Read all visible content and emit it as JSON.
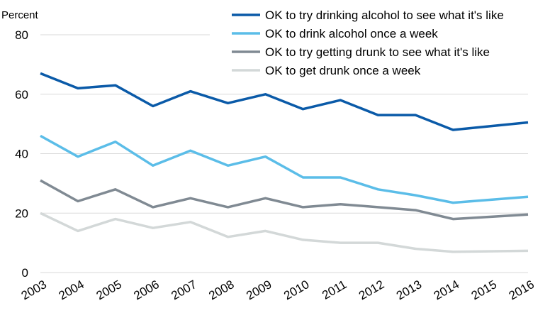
{
  "chart_data": {
    "type": "line",
    "ylabel": "Percent",
    "ylim": [
      0,
      80
    ],
    "yticks": [
      0,
      20,
      40,
      60,
      80
    ],
    "grid": true,
    "legend": "top-right",
    "categories": [
      "2003",
      "2004",
      "2005",
      "2006",
      "2007",
      "2008",
      "2009",
      "2010",
      "2011",
      "2012",
      "2013",
      "2014",
      "2015",
      "2016"
    ],
    "series": [
      {
        "name": "OK to try drinking alcohol to see what it's like",
        "color": "#0a5aa8",
        "values": [
          67,
          62,
          63,
          56,
          61,
          57,
          60,
          55,
          58,
          53,
          53,
          48,
          null,
          50.5
        ]
      },
      {
        "name": "OK to drink alcohol once a week",
        "color": "#5bbde8",
        "values": [
          46,
          39,
          44,
          36,
          41,
          36,
          39,
          32,
          32,
          28,
          26,
          23.5,
          null,
          25.5
        ]
      },
      {
        "name": "OK to try getting drunk to see what it's like",
        "color": "#808a93",
        "values": [
          31,
          24,
          28,
          22,
          25,
          22,
          25,
          22,
          23,
          22,
          21,
          18,
          null,
          19.5
        ]
      },
      {
        "name": "OK to get drunk once a week",
        "color": "#d3d8d8",
        "values": [
          20,
          14,
          18,
          15,
          17,
          12,
          14,
          11,
          10,
          10,
          8,
          7,
          null,
          7.3
        ]
      }
    ]
  }
}
